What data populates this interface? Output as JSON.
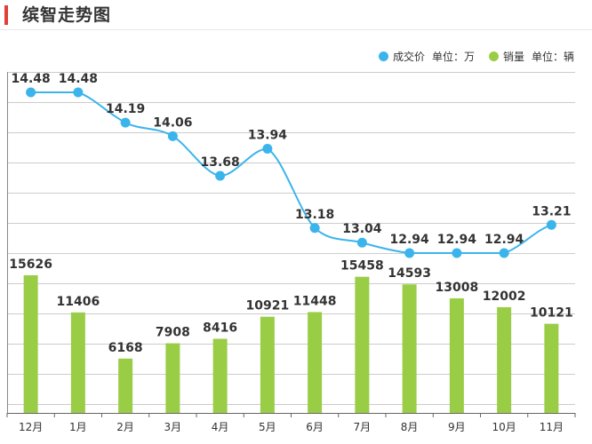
{
  "header": {
    "title": "缤智走势图"
  },
  "colors": {
    "accent": "#e0403a",
    "price": "#3bb4ec",
    "sales": "#9acd46",
    "grid": "#cccccc",
    "text": "#333333"
  },
  "legend": [
    {
      "series": "成交价",
      "unit": "单位：万",
      "color": "#3bb4ec"
    },
    {
      "series": "销量",
      "unit": "单位：辆",
      "color": "#9acd46"
    }
  ],
  "chart_data": {
    "type": "bar+line",
    "title": "缤智走势图",
    "categories": [
      "12月",
      "1月",
      "2月",
      "3月",
      "4月",
      "5月",
      "6月",
      "7月",
      "8月",
      "9月",
      "10月",
      "11月"
    ],
    "series": [
      {
        "name": "成交价",
        "unit": "万",
        "type": "line",
        "values": [
          14.48,
          14.48,
          14.19,
          14.06,
          13.68,
          13.94,
          13.18,
          13.04,
          12.94,
          12.94,
          12.94,
          13.21
        ],
        "labels": [
          "14.48",
          "14.48",
          "14.19",
          "14.06",
          "13.68",
          "13.94",
          "13.18",
          "13.04",
          "12.94",
          "12.94",
          "12.94",
          "13.21"
        ]
      },
      {
        "name": "销量",
        "unit": "辆",
        "type": "bar",
        "values": [
          15626,
          11406,
          6168,
          7908,
          8416,
          10921,
          11448,
          15458,
          14593,
          13008,
          12002,
          10121
        ]
      }
    ],
    "grid": true,
    "legend_position": "top-right"
  }
}
